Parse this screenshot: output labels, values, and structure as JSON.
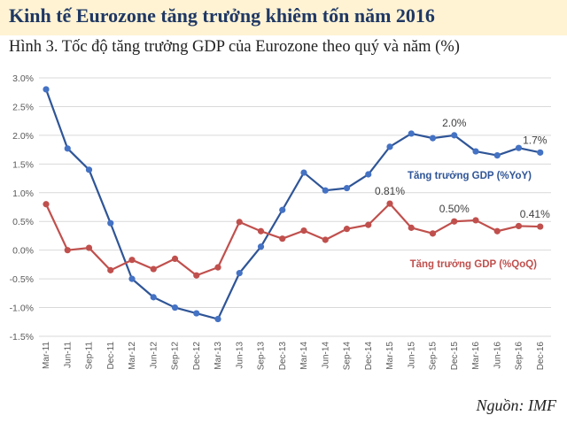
{
  "header": {
    "title": "Kinh tế Eurozone tăng trưởng khiêm tốn năm 2016"
  },
  "source": "Nguồn: IMF",
  "colors": {
    "header_bg": "#FFF3D3",
    "title": "#1F3864",
    "yoy": "#2F5597",
    "yoy_marker": "#4472C4",
    "qoq": "#C0504D",
    "grid": "#D9D9D9"
  },
  "chart_data": {
    "type": "line",
    "title": "Hình 3. Tốc độ tăng trưởng GDP của Eurozone theo quý và năm (%)",
    "xlabel": "",
    "ylabel": "",
    "ylim": [
      -1.5,
      3.0
    ],
    "yticks": [
      "3.0%",
      "2.5%",
      "2.0%",
      "1.5%",
      "1.0%",
      "0.5%",
      "0.0%",
      "-0.5%",
      "-1.0%",
      "-1.5%"
    ],
    "ytick_values": [
      3.0,
      2.5,
      2.0,
      1.5,
      1.0,
      0.5,
      0.0,
      -0.5,
      -1.0,
      -1.5
    ],
    "grid": true,
    "categories": [
      "Mar-11",
      "Jun-11",
      "Sep-11",
      "Dec-11",
      "Mar-12",
      "Jun-12",
      "Sep-12",
      "Dec-12",
      "Mar-13",
      "Jun-13",
      "Sep-13",
      "Dec-13",
      "Mar-14",
      "Jun-14",
      "Sep-14",
      "Dec-14",
      "Mar-15",
      "Jun-15",
      "Sep-15",
      "Dec-15",
      "Mar-16",
      "Jun-16",
      "Sep-16",
      "Dec-16"
    ],
    "series": [
      {
        "name": "Tăng trưởng GDP (%YoY)",
        "values": [
          2.8,
          1.77,
          1.4,
          0.47,
          -0.5,
          -0.82,
          -1.0,
          -1.1,
          -1.2,
          -0.4,
          0.06,
          0.7,
          1.35,
          1.04,
          1.08,
          1.32,
          1.8,
          2.03,
          1.95,
          2.0,
          1.72,
          1.65,
          1.78,
          1.7
        ]
      },
      {
        "name": "Tăng trưởng GDP (%QoQ)",
        "values": [
          0.8,
          0.0,
          0.04,
          -0.35,
          -0.17,
          -0.33,
          -0.15,
          -0.44,
          -0.3,
          0.49,
          0.33,
          0.2,
          0.34,
          0.18,
          0.37,
          0.44,
          0.81,
          0.39,
          0.29,
          0.5,
          0.52,
          0.33,
          0.42,
          0.41
        ]
      }
    ],
    "annotations": [
      {
        "series": 0,
        "index": 19,
        "text": "2.0%"
      },
      {
        "series": 0,
        "index": 23,
        "text": "1.7%"
      },
      {
        "series": 1,
        "index": 16,
        "text": "0.81%"
      },
      {
        "series": 1,
        "index": 19,
        "text": "0.50%"
      },
      {
        "series": 1,
        "index": 23,
        "text": "0.41%"
      }
    ],
    "legend_placement": "inline-labels"
  }
}
